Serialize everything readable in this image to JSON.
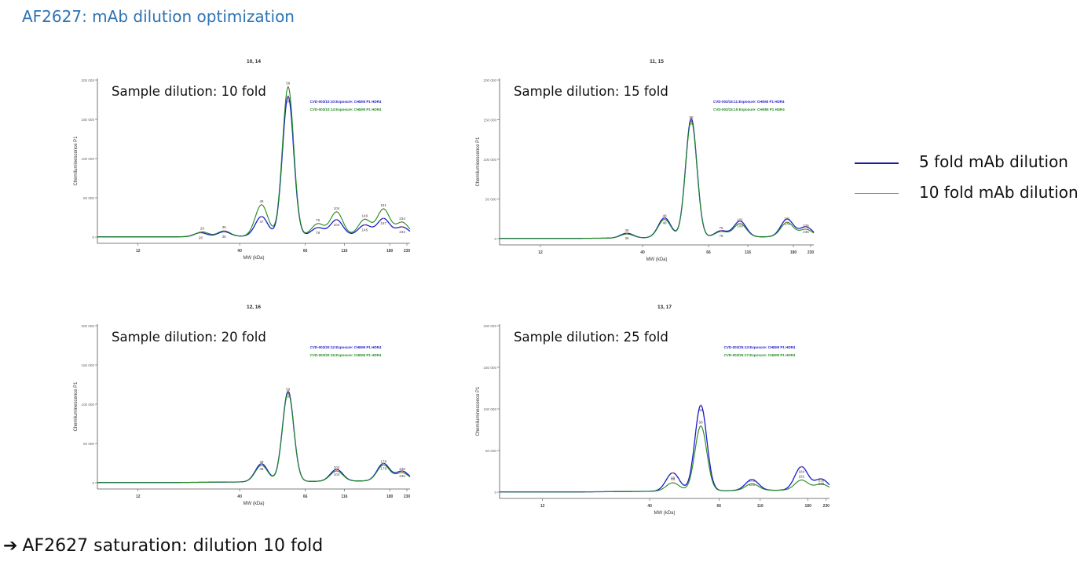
{
  "slide": {
    "title": "AF2627: mAb dilution optimization",
    "conclusion_arrow": "➔",
    "conclusion": "AF2627 saturation: dilution 10 fold"
  },
  "legend": {
    "items": [
      {
        "label": "5 fold mAb dilution",
        "color": "#1a1aa6"
      },
      {
        "label": "10 fold mAb dilution",
        "color": "#5b9bd5"
      }
    ]
  },
  "chart_data": [
    {
      "type": "line",
      "title": "10, 14",
      "annotation": "Sample dilution: 10 fold",
      "xlabel": "MW (kDa)",
      "ylabel": "Chemiluminescence P1",
      "x_ticks": [
        "12",
        "40",
        "66",
        "116",
        "180",
        "230"
      ],
      "y_ticks": [
        "0",
        "50 000",
        "100 000",
        "150 000",
        "200 000"
      ],
      "ylim": [
        0,
        200000
      ],
      "series": [
        {
          "name": "CVD-003/10:10:Exposure: CHEMI P1 HDR4",
          "color": "#1a1acc",
          "peaks": [
            {
              "label": "26",
              "x": 0.33,
              "y": 5000
            },
            {
              "label": "36",
              "x": 0.405,
              "y": 6000
            },
            {
              "label": "47",
              "x": 0.525,
              "y": 25000
            },
            {
              "label": "58",
              "x": 0.61,
              "y": 178000
            },
            {
              "label": "78",
              "x": 0.705,
              "y": 10000
            },
            {
              "label": "104",
              "x": 0.765,
              "y": 20000
            },
            {
              "label": "145",
              "x": 0.855,
              "y": 13000
            },
            {
              "label": "187",
              "x": 0.915,
              "y": 21000
            },
            {
              "label": "233",
              "x": 0.975,
              "y": 10000
            }
          ]
        },
        {
          "name": "CVD-003/10:14:Exposure: CHEMI P1 HDR4",
          "color": "#1e8a1e",
          "peaks": [
            {
              "label": "29",
              "x": 0.335,
              "y": 6000
            },
            {
              "label": "36",
              "x": 0.405,
              "y": 7000
            },
            {
              "label": "48",
              "x": 0.525,
              "y": 40000
            },
            {
              "label": "59",
              "x": 0.61,
              "y": 190000
            },
            {
              "label": "76",
              "x": 0.705,
              "y": 15000
            },
            {
              "label": "104",
              "x": 0.765,
              "y": 30000
            },
            {
              "label": "149",
              "x": 0.855,
              "y": 20000
            },
            {
              "label": "181",
              "x": 0.915,
              "y": 33000
            },
            {
              "label": "234",
              "x": 0.975,
              "y": 16000
            }
          ]
        }
      ]
    },
    {
      "type": "line",
      "title": "11, 15",
      "annotation": "Sample dilution: 15 fold",
      "xlabel": "MW (kDa)",
      "ylabel": "Chemiluminescence P1",
      "x_ticks": [
        "12",
        "40",
        "66",
        "116",
        "180",
        "230"
      ],
      "y_ticks": [
        "0",
        "50 000",
        "100 000",
        "150 000",
        "200 000"
      ],
      "ylim": [
        0,
        200000
      ],
      "series": [
        {
          "name": "CVD-003/15:11:Exposure: CHEMI P1 HDR4",
          "color": "#1a1acc",
          "peaks": [
            {
              "label": "36",
              "x": 0.405,
              "y": 6000
            },
            {
              "label": "48",
              "x": 0.525,
              "y": 25000
            },
            {
              "label": "59",
              "x": 0.61,
              "y": 150000
            },
            {
              "label": "75",
              "x": 0.705,
              "y": 8000
            },
            {
              "label": "104",
              "x": 0.765,
              "y": 20000
            },
            {
              "label": "176",
              "x": 0.915,
              "y": 22000
            },
            {
              "label": "235",
              "x": 0.975,
              "y": 12000
            }
          ]
        },
        {
          "name": "CVD-003/15:15:Exposure: CHEMI P1 HDR4",
          "color": "#1e8a1e",
          "peaks": [
            {
              "label": "36",
              "x": 0.405,
              "y": 5000
            },
            {
              "label": "48",
              "x": 0.525,
              "y": 23000
            },
            {
              "label": "58",
              "x": 0.61,
              "y": 147000
            },
            {
              "label": "75",
              "x": 0.705,
              "y": 7000
            },
            {
              "label": "101",
              "x": 0.765,
              "y": 17000
            },
            {
              "label": "181",
              "x": 0.915,
              "y": 18000
            },
            {
              "label": "235",
              "x": 0.975,
              "y": 9000
            }
          ]
        }
      ]
    },
    {
      "type": "line",
      "title": "12, 16",
      "annotation": "Sample dilution: 20 fold",
      "xlabel": "MW (kDa)",
      "ylabel": "Chemiluminescence P1",
      "x_ticks": [
        "12",
        "40",
        "66",
        "116",
        "180",
        "230"
      ],
      "y_ticks": [
        "0",
        "50 000",
        "100 000",
        "150 000",
        "200 000"
      ],
      "ylim": [
        0,
        200000
      ],
      "series": [
        {
          "name": "CVD-003/20:12:Exposure: CHEMI P1 HDR4",
          "color": "#1a1acc",
          "peaks": [
            {
              "label": "48",
              "x": 0.525,
              "y": 23000
            },
            {
              "label": "58",
              "x": 0.61,
              "y": 115000
            },
            {
              "label": "104",
              "x": 0.765,
              "y": 15000
            },
            {
              "label": "179",
              "x": 0.915,
              "y": 22000
            },
            {
              "label": "230",
              "x": 0.975,
              "y": 12000
            }
          ]
        },
        {
          "name": "CVD-003/20:16:Exposure: CHEMI P1 HDR4",
          "color": "#1e8a1e",
          "peaks": [
            {
              "label": "48",
              "x": 0.525,
              "y": 21000
            },
            {
              "label": "59",
              "x": 0.61,
              "y": 113000
            },
            {
              "label": "102",
              "x": 0.765,
              "y": 13000
            },
            {
              "label": "179",
              "x": 0.915,
              "y": 20000
            },
            {
              "label": "236",
              "x": 0.975,
              "y": 10000
            }
          ]
        }
      ]
    },
    {
      "type": "line",
      "title": "13, 17",
      "annotation": "Sample dilution: 25 fold",
      "xlabel": "MW (kDa)",
      "ylabel": "Chemiluminescence P1",
      "x_ticks": [
        "12",
        "40",
        "66",
        "116",
        "180",
        "230"
      ],
      "y_ticks": [
        "0",
        "50 000",
        "100 000",
        "150 000",
        "200 000"
      ],
      "ylim": [
        0,
        200000
      ],
      "series": [
        {
          "name": "CVD-003/25:13:Exposure: CHEMI P1 HDR4",
          "color": "#1a1acc",
          "peaks": [
            {
              "label": "48",
              "x": 0.525,
              "y": 22000
            },
            {
              "label": "58",
              "x": 0.61,
              "y": 103000
            },
            {
              "label": "101",
              "x": 0.765,
              "y": 13000
            },
            {
              "label": "184",
              "x": 0.915,
              "y": 28000
            },
            {
              "label": "239",
              "x": 0.975,
              "y": 13000
            }
          ]
        },
        {
          "name": "CVD-003/25:17:Exposure: CHEMI P1 HDR4",
          "color": "#1e8a1e",
          "peaks": [
            {
              "label": "48",
              "x": 0.525,
              "y": 10000
            },
            {
              "label": "58",
              "x": 0.61,
              "y": 78000
            },
            {
              "label": "101",
              "x": 0.765,
              "y": 8000
            },
            {
              "label": "182",
              "x": 0.915,
              "y": 12000
            },
            {
              "label": "239",
              "x": 0.975,
              "y": 7000
            }
          ]
        }
      ]
    }
  ]
}
